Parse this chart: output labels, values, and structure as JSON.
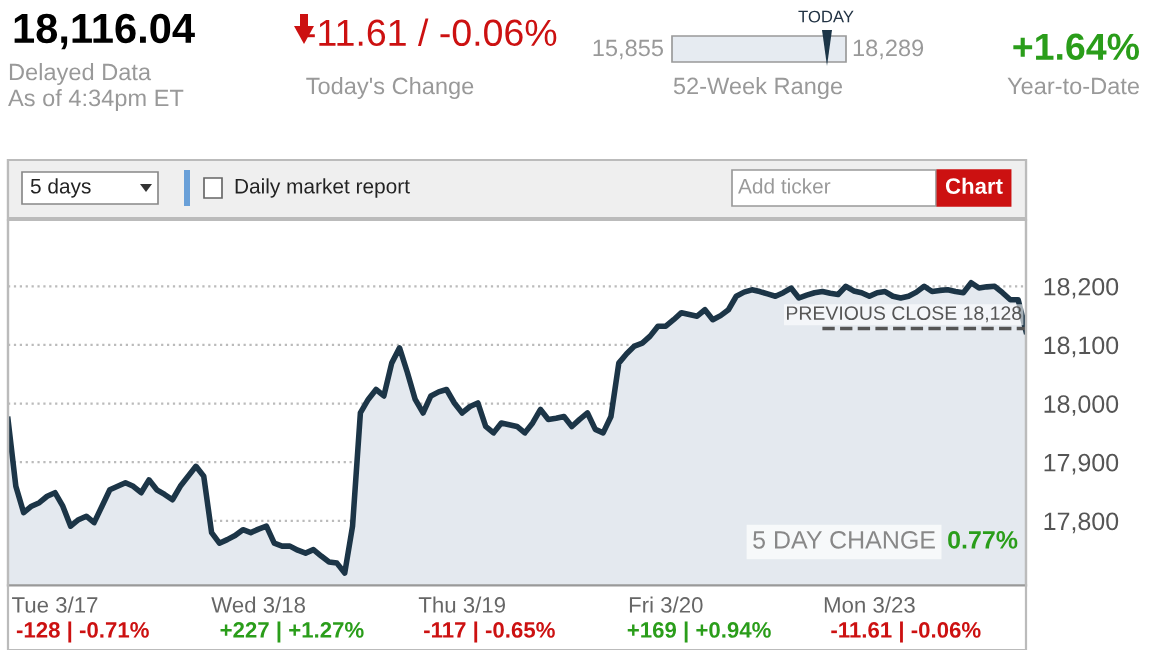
{
  "chart_data": {
    "type": "area",
    "title": "18,116.04",
    "categories": [
      null,
      null,
      null,
      null,
      null,
      null,
      "Tue 3/17",
      null,
      null,
      null,
      null,
      null,
      null,
      null,
      null,
      null,
      null,
      null,
      null,
      null,
      null,
      null,
      null,
      null,
      null,
      null,
      null,
      null,
      null,
      null,
      null,
      null,
      "Wed 3/18",
      null,
      null,
      null,
      null,
      null,
      null,
      null,
      null,
      null,
      null,
      null,
      null,
      null,
      null,
      null,
      null,
      null,
      null,
      null,
      null,
      null,
      null,
      null,
      null,
      null,
      "Thu 3/19",
      null,
      null,
      null,
      null,
      null,
      null,
      null,
      null,
      null,
      null,
      null,
      null,
      null,
      null,
      null,
      null,
      null,
      null,
      null,
      null,
      null,
      null,
      null,
      null,
      null,
      "Fri 3/20",
      null,
      null,
      null,
      null,
      null,
      null,
      null,
      null,
      null,
      null,
      null,
      null,
      null,
      null,
      null,
      null,
      null,
      null,
      null,
      null,
      null,
      null,
      null,
      null,
      null,
      "Mon 3/23",
      null,
      null,
      null,
      null,
      null,
      null,
      null,
      null,
      null,
      null,
      null,
      null,
      null,
      null,
      null,
      null,
      null,
      null,
      null,
      null
    ],
    "series": [
      {
        "color": "#1c3547",
        "values": [
          17973,
          17859,
          17814,
          17825,
          17831,
          17842,
          17848,
          17825,
          17791,
          17802,
          17808,
          17797,
          17825,
          17853,
          17859,
          17865,
          17859,
          17848,
          17870,
          17853,
          17845,
          17836,
          17859,
          17876,
          17893,
          17876,
          17780,
          17762,
          17768,
          17775,
          17785,
          17780,
          17786,
          17791,
          17762,
          17757,
          17757,
          17750,
          17745,
          17751,
          17740,
          17730,
          17728,
          17711,
          17791,
          17984,
          18007,
          18024,
          18013,
          18069,
          18095,
          18053,
          18007,
          17984,
          18013,
          18020,
          18024,
          18001,
          17984,
          17995,
          18001,
          17961,
          17950,
          17967,
          17964,
          17961,
          17950,
          17967,
          17990,
          17973,
          17975,
          17978,
          17961,
          17973,
          17984,
          17956,
          17950,
          17978,
          18069,
          18085,
          18098,
          18103,
          18115,
          18132,
          18132,
          18143,
          18155,
          18152,
          18149,
          18160,
          18143,
          18150,
          18160,
          18183,
          18190,
          18194,
          18191,
          18187,
          18183,
          18189,
          18197,
          18180,
          18185,
          18189,
          18191,
          18188,
          18186,
          18200,
          18192,
          18189,
          18183,
          18189,
          18191,
          18183,
          18180,
          18183,
          18190,
          18200,
          18191,
          18193,
          18194,
          18191,
          18189,
          18206,
          18197,
          18199,
          18200,
          18189,
          18177,
          18177,
          18123
        ]
      }
    ],
    "ylim": [
      17690,
      18313
    ],
    "yticks": [
      {
        "value": 17800,
        "label": "17,800"
      },
      {
        "value": 17900,
        "label": "17,900"
      },
      {
        "value": 18000,
        "label": "18,000"
      },
      {
        "value": 18100,
        "label": "18,100"
      },
      {
        "value": 18200,
        "label": "18,200"
      }
    ],
    "grid": "y",
    "ref_lines": [
      {
        "axis": "y",
        "value": 18128,
        "label": "PREVIOUS CLOSE 18,128",
        "line_style": "dashed",
        "color": "#555555"
      }
    ],
    "annotations": [
      "Delayed Data",
      "As of 4:34pm ET",
      "-11.61 / -0.06%",
      "Today's Change",
      "15,855",
      "18,289",
      "TODAY",
      "52-Week Range",
      "+1.64%",
      "Year-to-Date",
      "5 days",
      "Daily market report",
      "Add ticker",
      "Chart",
      "5 DAY CHANGE",
      "0.77%",
      "-128 | -0.71%",
      "+227 | +1.27%",
      "-117 | -0.65%",
      "+169 | +0.94%",
      "-11.61 | -0.06%"
    ]
  }
}
